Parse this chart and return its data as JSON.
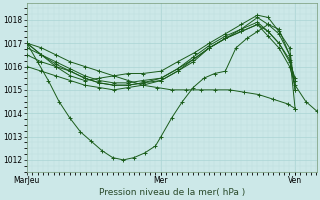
{
  "title": "Pression niveau de la mer( hPa )",
  "bg_color": "#cce8e8",
  "grid_major_color": "#aad4d4",
  "grid_minor_color": "#bbdddd",
  "line_color": "#1a5c1a",
  "ylim": [
    1011.5,
    1018.7
  ],
  "yticks": [
    1012,
    1013,
    1014,
    1015,
    1016,
    1017,
    1018
  ],
  "xtick_labels": [
    "MarJeu",
    "Mer",
    "Ven"
  ],
  "xtick_positions": [
    0.0,
    0.463,
    0.926
  ],
  "series": [
    {
      "x": [
        0.0,
        0.05,
        0.1,
        0.15,
        0.2,
        0.25,
        0.3,
        0.35,
        0.4,
        0.45,
        0.5,
        0.55,
        0.6,
        0.65,
        0.7,
        0.75,
        0.8,
        0.85,
        0.9,
        0.926
      ],
      "y": [
        1017.0,
        1016.8,
        1016.5,
        1016.2,
        1016.0,
        1015.8,
        1015.6,
        1015.4,
        1015.2,
        1015.1,
        1015.0,
        1015.0,
        1015.0,
        1015.0,
        1015.0,
        1014.9,
        1014.8,
        1014.6,
        1014.4,
        1014.2
      ]
    },
    {
      "x": [
        0.0,
        0.037,
        0.074,
        0.111,
        0.148,
        0.185,
        0.222,
        0.259,
        0.296,
        0.333,
        0.37,
        0.407,
        0.444,
        0.463,
        0.5,
        0.537,
        0.574,
        0.611,
        0.648,
        0.685,
        0.722,
        0.759,
        0.796,
        0.833,
        0.87,
        0.907,
        0.926
      ],
      "y": [
        1017.0,
        1016.2,
        1015.4,
        1014.5,
        1013.8,
        1013.2,
        1012.8,
        1012.4,
        1012.1,
        1012.0,
        1012.1,
        1012.3,
        1012.6,
        1013.0,
        1013.8,
        1014.5,
        1015.1,
        1015.5,
        1015.7,
        1015.8,
        1016.8,
        1017.2,
        1017.5,
        1017.8,
        1017.6,
        1016.5,
        1014.2
      ]
    },
    {
      "x": [
        0.0,
        0.05,
        0.1,
        0.15,
        0.2,
        0.25,
        0.3,
        0.35,
        0.4,
        0.463,
        0.52,
        0.58,
        0.63,
        0.685,
        0.74,
        0.796,
        0.833,
        0.87,
        0.907,
        0.926
      ],
      "y": [
        1017.0,
        1016.5,
        1016.0,
        1015.6,
        1015.4,
        1015.5,
        1015.6,
        1015.7,
        1015.7,
        1015.8,
        1016.2,
        1016.6,
        1017.0,
        1017.4,
        1017.8,
        1018.2,
        1018.1,
        1017.5,
        1016.8,
        1015.0
      ]
    },
    {
      "x": [
        0.0,
        0.05,
        0.1,
        0.15,
        0.2,
        0.25,
        0.3,
        0.35,
        0.4,
        0.463,
        0.52,
        0.574,
        0.63,
        0.685,
        0.74,
        0.796,
        0.833,
        0.87,
        0.907,
        0.926
      ],
      "y": [
        1017.0,
        1016.5,
        1016.1,
        1015.8,
        1015.5,
        1015.3,
        1015.2,
        1015.2,
        1015.3,
        1015.4,
        1015.8,
        1016.2,
        1016.8,
        1017.2,
        1017.6,
        1018.1,
        1017.8,
        1017.4,
        1016.5,
        1015.0
      ]
    },
    {
      "x": [
        0.0,
        0.05,
        0.1,
        0.15,
        0.2,
        0.25,
        0.3,
        0.35,
        0.4,
        0.463,
        0.52,
        0.574,
        0.63,
        0.685,
        0.74,
        0.796,
        0.833,
        0.87,
        0.907,
        0.926
      ],
      "y": [
        1016.8,
        1016.5,
        1016.2,
        1015.9,
        1015.6,
        1015.4,
        1015.3,
        1015.3,
        1015.4,
        1015.5,
        1015.9,
        1016.3,
        1016.8,
        1017.2,
        1017.5,
        1017.8,
        1017.5,
        1017.0,
        1016.3,
        1015.4
      ]
    },
    {
      "x": [
        0.0,
        0.05,
        0.1,
        0.15,
        0.2,
        0.25,
        0.3,
        0.35,
        0.4,
        0.463,
        0.52,
        0.574,
        0.63,
        0.685,
        0.74,
        0.796,
        0.833,
        0.87,
        0.907,
        0.926
      ],
      "y": [
        1016.5,
        1016.2,
        1016.0,
        1015.8,
        1015.5,
        1015.3,
        1015.2,
        1015.2,
        1015.3,
        1015.5,
        1015.9,
        1016.4,
        1016.9,
        1017.3,
        1017.6,
        1017.9,
        1017.5,
        1017.0,
        1016.2,
        1015.5
      ]
    },
    {
      "x": [
        0.0,
        0.05,
        0.1,
        0.15,
        0.2,
        0.25,
        0.3,
        0.35,
        0.4,
        0.463,
        0.52,
        0.574,
        0.63,
        0.685,
        0.74,
        0.796,
        0.833,
        0.87,
        0.907,
        0.926,
        0.963,
        1.0
      ],
      "y": [
        1016.0,
        1015.8,
        1015.6,
        1015.4,
        1015.2,
        1015.1,
        1015.0,
        1015.1,
        1015.2,
        1015.4,
        1015.8,
        1016.3,
        1016.8,
        1017.2,
        1017.5,
        1017.8,
        1017.3,
        1016.8,
        1016.0,
        1015.2,
        1014.5,
        1014.1
      ]
    }
  ]
}
